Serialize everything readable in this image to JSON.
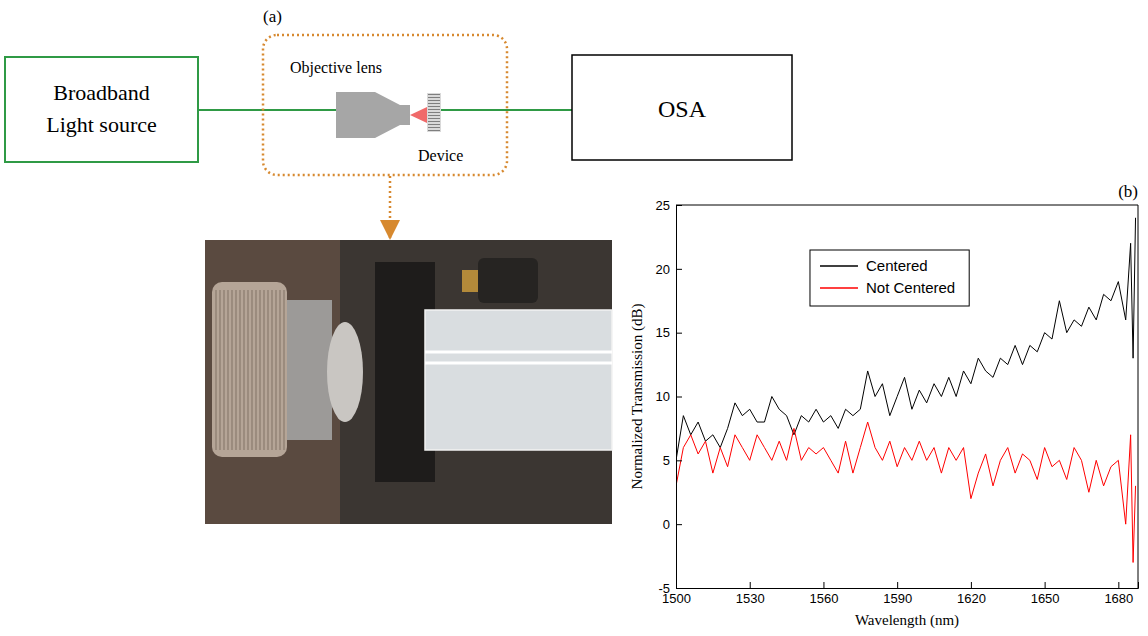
{
  "diagram": {
    "panel_label": "(a)",
    "source": {
      "label_lines": [
        "Broadband",
        "Light source"
      ]
    },
    "lens_label": "Objective lens",
    "device_label": "Device",
    "analyzer": {
      "label": "OSA"
    }
  },
  "chart_data": {
    "type": "line",
    "title": "(b)",
    "x_label": "Wavelength (nm)",
    "y_label": "Normalized Transmission (dB)",
    "xlim": [
      1500,
      1688
    ],
    "xticks": [
      1500,
      1530,
      1560,
      1590,
      1620,
      1650,
      1680
    ],
    "ylim": [
      -5,
      25
    ],
    "yticks": [
      -5,
      0,
      5,
      10,
      15,
      20,
      25
    ],
    "grid": false,
    "legend": "top",
    "x": [
      1500,
      1503,
      1506,
      1509,
      1512,
      1515,
      1518,
      1521,
      1524,
      1527,
      1530,
      1533,
      1536,
      1539,
      1542,
      1545,
      1548,
      1551,
      1554,
      1557,
      1560,
      1563,
      1566,
      1569,
      1572,
      1575,
      1578,
      1581,
      1584,
      1587,
      1590,
      1593,
      1596,
      1599,
      1602,
      1605,
      1608,
      1611,
      1614,
      1617,
      1620,
      1623,
      1626,
      1629,
      1632,
      1635,
      1638,
      1641,
      1644,
      1647,
      1650,
      1653,
      1656,
      1659,
      1662,
      1665,
      1668,
      1671,
      1674,
      1677,
      1680,
      1683,
      1685,
      1686,
      1687
    ],
    "series": [
      {
        "name": "Centered",
        "color": "#000000",
        "values": [
          5,
          8.5,
          7,
          8,
          6.5,
          7,
          6,
          7.5,
          9.5,
          8.5,
          9,
          8,
          8,
          10,
          9,
          8.5,
          7,
          8.5,
          8,
          9,
          8,
          8.5,
          7.5,
          9,
          8.5,
          9,
          12,
          10,
          11,
          8.5,
          10,
          11.5,
          9,
          10.5,
          9.5,
          11,
          10,
          11.5,
          10,
          12,
          11,
          13,
          12,
          11.5,
          13,
          12.5,
          14,
          12.5,
          14,
          13.5,
          15,
          14.5,
          17.5,
          15,
          16,
          15.5,
          17,
          16,
          18,
          17.5,
          19,
          16,
          22,
          13,
          24
        ]
      },
      {
        "name": "Not Centered",
        "color": "#ff0000",
        "values": [
          3,
          6,
          7,
          5.5,
          6.5,
          4,
          6,
          4.5,
          7,
          6,
          5,
          7,
          6,
          5,
          6.5,
          5,
          7.5,
          5,
          6,
          5.5,
          6,
          5,
          4,
          6.5,
          4,
          6,
          8,
          6,
          5,
          6.5,
          4.5,
          6,
          5,
          6.5,
          5,
          6,
          4,
          6,
          5,
          6,
          2,
          4,
          5.5,
          3,
          5,
          6,
          4,
          5.5,
          5,
          3.5,
          6,
          4.5,
          5,
          3.5,
          6,
          5,
          2.5,
          5,
          3,
          4.5,
          5,
          0,
          7,
          -3,
          3
        ]
      }
    ]
  }
}
